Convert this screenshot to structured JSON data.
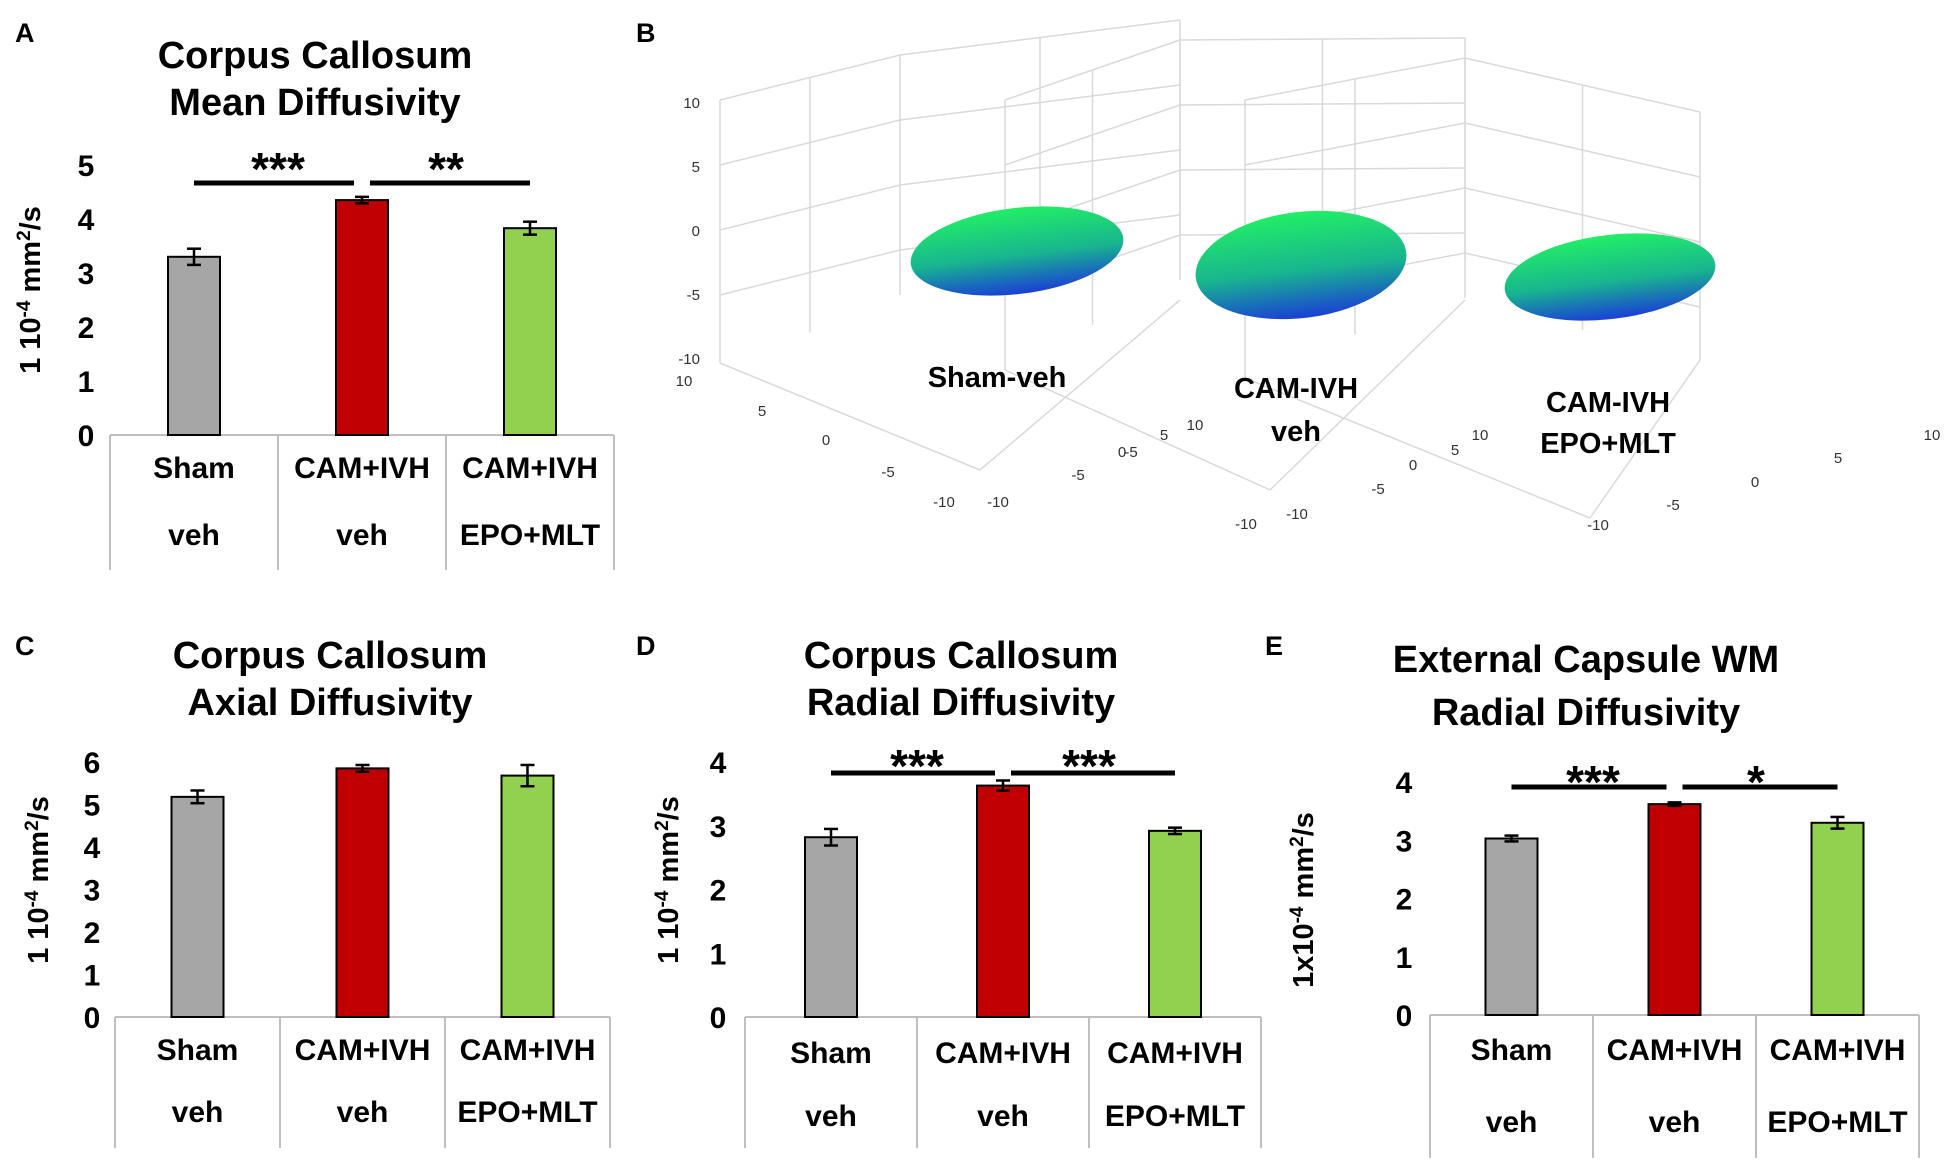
{
  "colors": {
    "sham": "#a6a6a6",
    "cam_veh": "#c00000",
    "cam_epo": "#92d050",
    "axis": "#000000",
    "table_line": "#bfbfbf",
    "grid3d": "#d9d9d9",
    "ellipsoid_top": "#22ee66",
    "ellipsoid_bottom": "#1a3fd6"
  },
  "chart_data": [
    {
      "panel": "A",
      "type": "bar",
      "title": "Corpus Callosum",
      "subtitle": "Mean Diffusivity",
      "ylabel": "1 10-4 mm2/s",
      "ylabel_parts": [
        "1 10",
        "-4",
        " mm",
        "2",
        "/s"
      ],
      "ylim": [
        0,
        5
      ],
      "yticks": [
        "0",
        "1",
        "2",
        "3",
        "4",
        "5"
      ],
      "categories": [
        [
          "Sham",
          "veh"
        ],
        [
          "CAM+IVH",
          "veh"
        ],
        [
          "CAM+IVH",
          "EPO+MLT"
        ]
      ],
      "values": [
        3.3,
        4.35,
        3.83
      ],
      "errors": [
        0.15,
        0.06,
        0.12
      ],
      "significance": [
        {
          "from": 0,
          "to": 1,
          "label": "***"
        },
        {
          "from": 1,
          "to": 2,
          "label": "**"
        }
      ]
    },
    {
      "panel": "B",
      "type": "3d-ellipsoid",
      "axis_ticks_vertical": [
        "10",
        "5",
        "0",
        "-5",
        "-10"
      ],
      "axis_ticks_depth": [
        "10",
        "5",
        "0",
        "-5",
        "-10"
      ],
      "axis_ticks_horizontal": [
        "-10",
        "-5",
        "0",
        "5",
        "10"
      ],
      "groups": [
        {
          "label_lines": [
            "Sham-veh"
          ]
        },
        {
          "label_lines": [
            "CAM-IVH",
            "veh"
          ]
        },
        {
          "label_lines": [
            "CAM-IVH",
            "EPO+MLT"
          ]
        }
      ]
    },
    {
      "panel": "C",
      "type": "bar",
      "title": "Corpus Callosum",
      "subtitle": "Axial Diffusivity",
      "ylabel": "1 10-4 mm2/s",
      "ylabel_parts": [
        "1 10",
        "-4",
        " mm",
        "2",
        "/s"
      ],
      "ylim": [
        0,
        6
      ],
      "yticks": [
        "0",
        "1",
        "2",
        "3",
        "4",
        "5",
        "6"
      ],
      "categories": [
        [
          "Sham",
          "veh"
        ],
        [
          "CAM+IVH",
          "veh"
        ],
        [
          "CAM+IVH",
          "EPO+MLT"
        ]
      ],
      "values": [
        5.18,
        5.85,
        5.68
      ],
      "errors": [
        0.15,
        0.08,
        0.25
      ],
      "significance": []
    },
    {
      "panel": "D",
      "type": "bar",
      "title": "Corpus Callosum",
      "subtitle": "Radial Diffusivity",
      "ylabel": "1 10-4 mm2/s",
      "ylabel_parts": [
        "1 10",
        "-4",
        " mm",
        "2",
        "/s"
      ],
      "ylim": [
        0,
        4
      ],
      "yticks": [
        "0",
        "1",
        "2",
        "3",
        "4"
      ],
      "categories": [
        [
          "Sham",
          "veh"
        ],
        [
          "CAM+IVH",
          "veh"
        ],
        [
          "CAM+IVH",
          "EPO+MLT"
        ]
      ],
      "values": [
        2.82,
        3.63,
        2.92
      ],
      "errors": [
        0.13,
        0.08,
        0.05
      ],
      "significance": [
        {
          "from": 0,
          "to": 1,
          "label": "***"
        },
        {
          "from": 1,
          "to": 2,
          "label": "***"
        }
      ]
    },
    {
      "panel": "E",
      "type": "bar",
      "title": "External Capsule WM",
      "subtitle": "Radial Diffusivity",
      "ylabel": "1x10-4 mm2/s",
      "ylabel_parts": [
        "1x10",
        "-4",
        " mm",
        "2",
        "/s"
      ],
      "ylim": [
        0,
        4
      ],
      "yticks": [
        "0",
        "1",
        "2",
        "3",
        "4"
      ],
      "categories": [
        [
          "Sham",
          "veh"
        ],
        [
          "CAM+IVH",
          "veh"
        ],
        [
          "CAM+IVH",
          "EPO+MLT"
        ]
      ],
      "values": [
        3.03,
        3.62,
        3.3
      ],
      "errors": [
        0.05,
        0.03,
        0.1
      ],
      "significance": [
        {
          "from": 0,
          "to": 1,
          "label": "***"
        },
        {
          "from": 1,
          "to": 2,
          "label": "*"
        }
      ]
    }
  ]
}
